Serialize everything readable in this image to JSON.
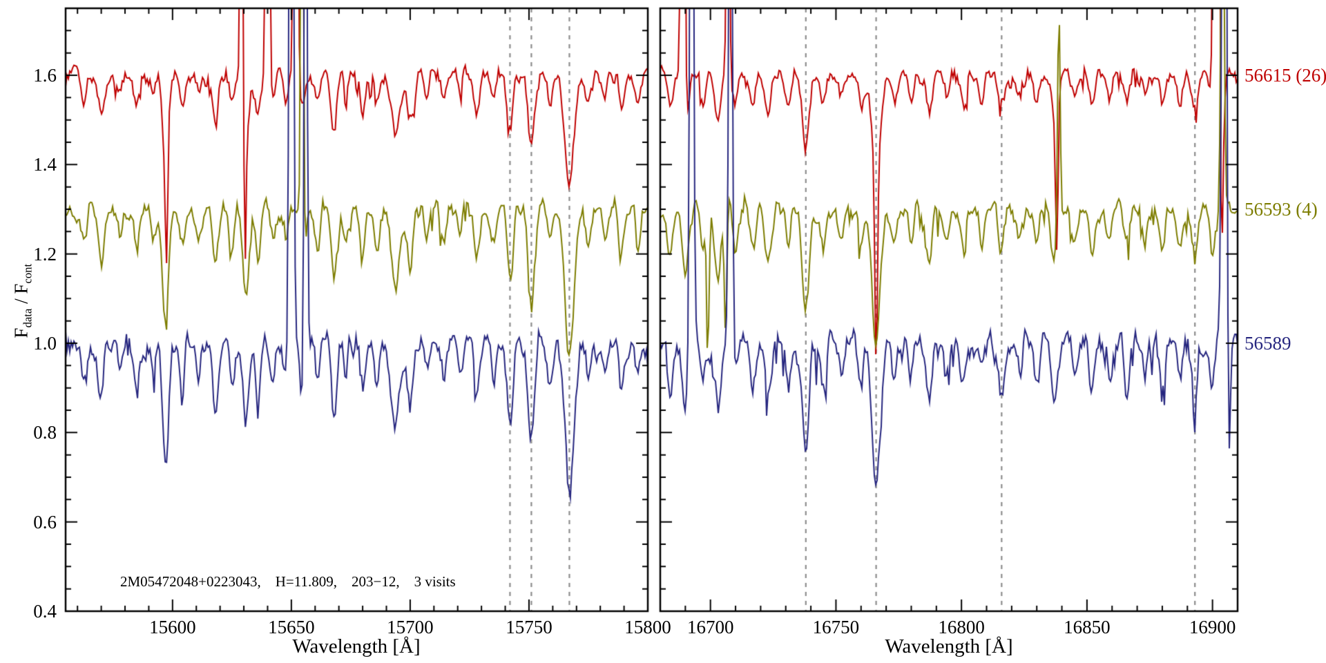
{
  "figure": {
    "bg": "#ffffff",
    "frame_color": "#000000",
    "dashed_color": "#8c8c8c",
    "ylabel_parts": [
      "F",
      "data",
      " / F",
      "cont"
    ],
    "annotation": "2M05472048+0223043,    H=11.809,    203−12,    3 visits"
  },
  "chart_data": {
    "type": "line",
    "title": "",
    "ylabel": "F_data / F_cont",
    "ylim": [
      0.4,
      1.75
    ],
    "yticks": [
      0.4,
      0.6,
      0.8,
      1.0,
      1.2,
      1.4,
      1.6
    ],
    "legend_position": "right-outside",
    "grid": false,
    "series": [
      {
        "label": "56615 (26)",
        "color": "#bf0000",
        "offset": 1.6,
        "noise": 0.015,
        "depth_scale": 0.7,
        "seed": 7
      },
      {
        "label": "56593 (4)",
        "color": "#7d7d00",
        "offset": 1.3,
        "noise": 0.017,
        "depth_scale": 0.95,
        "seed": 13
      },
      {
        "label": "56589",
        "color": "#26267f",
        "offset": 1.0,
        "noise": 0.022,
        "depth_scale": 1.0,
        "seed": 29
      }
    ],
    "panels": [
      {
        "xlabel": "Wavelength [Å]",
        "xlim": [
          15555,
          15800
        ],
        "xticks": [
          15600,
          15650,
          15700,
          15750,
          15800
        ],
        "minor_step": 10,
        "dashed_lines": [
          15742,
          15751,
          15767
        ],
        "absorption": [
          [
            15563,
            0.08,
            1.0
          ],
          [
            15570,
            0.13,
            1.2
          ],
          [
            15578,
            0.06,
            0.9
          ],
          [
            15585,
            0.1,
            1.1
          ],
          [
            15592,
            0.07,
            0.9
          ],
          [
            15597,
            0.27,
            1.2
          ],
          [
            15604,
            0.1,
            1.0
          ],
          [
            15611,
            0.06,
            0.9
          ],
          [
            15618,
            0.15,
            1.1
          ],
          [
            15625,
            0.09,
            1.0
          ],
          [
            15631,
            0.19,
            1.2
          ],
          [
            15636,
            0.12,
            1.0
          ],
          [
            15642,
            0.07,
            0.9
          ],
          [
            15648,
            0.08,
            0.9
          ],
          [
            15655,
            0.12,
            1.0
          ],
          [
            15661,
            0.08,
            1.0
          ],
          [
            15668,
            0.16,
            1.2
          ],
          [
            15673,
            0.07,
            0.9
          ],
          [
            15680,
            0.1,
            1.0
          ],
          [
            15686,
            0.08,
            1.0
          ],
          [
            15694,
            0.18,
            1.8
          ],
          [
            15700,
            0.13,
            1.4
          ],
          [
            15707,
            0.07,
            1.0
          ],
          [
            15714,
            0.09,
            1.0
          ],
          [
            15721,
            0.06,
            0.9
          ],
          [
            15728,
            0.11,
            1.1
          ],
          [
            15735,
            0.08,
            1.0
          ],
          [
            15742,
            0.17,
            1.2
          ],
          [
            15751,
            0.23,
            1.3
          ],
          [
            15759,
            0.08,
            1.0
          ],
          [
            15767,
            0.34,
            1.9
          ],
          [
            15775,
            0.09,
            1.0
          ],
          [
            15782,
            0.07,
            1.0
          ],
          [
            15789,
            0.1,
            1.1
          ],
          [
            15796,
            0.08,
            1.0
          ]
        ],
        "spikes": [
          [
            15597.5,
            -0.25,
            0.5,
            0
          ],
          [
            15629,
            0.8,
            0.5,
            0
          ],
          [
            15630.5,
            -0.3,
            0.4,
            0
          ],
          [
            15640,
            1.6,
            0.6,
            0
          ],
          [
            15650,
            2.6,
            0.7,
            2
          ],
          [
            15651.8,
            2.6,
            0.6,
            0
          ],
          [
            15654.5,
            1.3,
            0.5,
            1
          ],
          [
            15656,
            2.0,
            0.5,
            2
          ]
        ]
      },
      {
        "xlabel": "Wavelength [Å]",
        "xlim": [
          16680,
          16910
        ],
        "xticks": [
          16700,
          16750,
          16800,
          16850,
          16900
        ],
        "minor_step": 10,
        "dashed_lines": [
          16738,
          16766,
          16816,
          16893
        ],
        "absorption": [
          [
            16684,
            0.1,
            1.0
          ],
          [
            16690,
            0.14,
            1.2
          ],
          [
            16697,
            0.09,
            1.0
          ],
          [
            16703,
            0.16,
            1.2
          ],
          [
            16710,
            0.08,
            1.0
          ],
          [
            16717,
            0.1,
            1.0
          ],
          [
            16723,
            0.13,
            1.1
          ],
          [
            16731,
            0.08,
            1.0
          ],
          [
            16738,
            0.23,
            1.4
          ],
          [
            16745,
            0.09,
            1.0
          ],
          [
            16752,
            0.07,
            1.0
          ],
          [
            16760,
            0.1,
            1.0
          ],
          [
            16766,
            0.31,
            1.7
          ],
          [
            16773,
            0.09,
            1.0
          ],
          [
            16780,
            0.08,
            1.0
          ],
          [
            16787,
            0.12,
            1.1
          ],
          [
            16794,
            0.07,
            1.0
          ],
          [
            16801,
            0.09,
            1.0
          ],
          [
            16808,
            0.08,
            1.0
          ],
          [
            16816,
            0.11,
            1.1
          ],
          [
            16823,
            0.07,
            1.0
          ],
          [
            16830,
            0.09,
            1.0
          ],
          [
            16837,
            0.13,
            1.2
          ],
          [
            16845,
            0.08,
            1.0
          ],
          [
            16852,
            0.1,
            1.0
          ],
          [
            16859,
            0.07,
            1.0
          ],
          [
            16866,
            0.09,
            1.0
          ],
          [
            16873,
            0.06,
            0.9
          ],
          [
            16880,
            0.1,
            1.1
          ],
          [
            16887,
            0.08,
            1.0
          ],
          [
            16893,
            0.12,
            1.1
          ],
          [
            16900,
            0.09,
            1.0
          ]
        ],
        "spikes": [
          [
            16689,
            1.8,
            0.6,
            0
          ],
          [
            16692.5,
            2.2,
            0.6,
            2
          ],
          [
            16699,
            -0.3,
            0.5,
            1
          ],
          [
            16706,
            -0.28,
            0.5,
            1
          ],
          [
            16707,
            0.9,
            0.5,
            0
          ],
          [
            16708,
            1.7,
            0.6,
            2
          ],
          [
            16766,
            -0.45,
            0.5,
            0
          ],
          [
            16838,
            -0.33,
            0.5,
            0
          ],
          [
            16838.8,
            0.5,
            0.5,
            1
          ],
          [
            16902,
            3.0,
            1.0,
            0
          ],
          [
            16903,
            -1.6,
            0.8,
            0
          ],
          [
            16904,
            0.9,
            0.6,
            1
          ],
          [
            16905,
            2.6,
            0.9,
            2
          ],
          [
            16906,
            -1.1,
            0.7,
            2
          ]
        ]
      }
    ]
  }
}
